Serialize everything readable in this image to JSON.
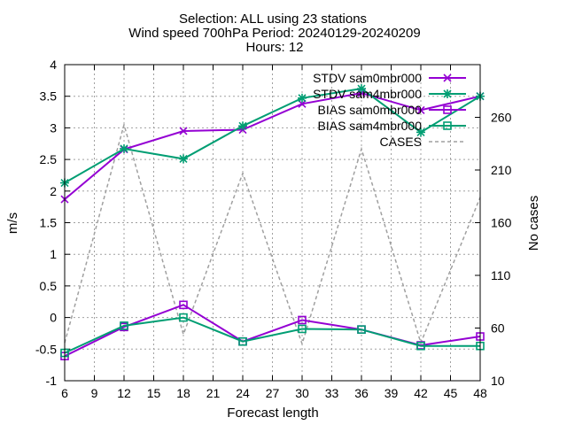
{
  "chart_data": {
    "type": "line",
    "title": [
      "Selection: ALL using    23 stations",
      "Wind speed 700hPa   Period: 20240129-20240209",
      "Hours: 12"
    ],
    "xlabel": "Forecast length",
    "ylabel": "m/s",
    "y2label": "No cases",
    "xlim": [
      6,
      48
    ],
    "ylim": [
      -1,
      4
    ],
    "y2lim": [
      10,
      310
    ],
    "xticks": [
      6,
      9,
      12,
      15,
      18,
      21,
      24,
      27,
      30,
      33,
      36,
      39,
      42,
      45,
      48
    ],
    "yticks": [
      -1,
      -0.5,
      0,
      0.5,
      1,
      1.5,
      2,
      2.5,
      3,
      3.5,
      4
    ],
    "y2ticks": [
      10,
      60,
      110,
      160,
      210,
      260
    ],
    "grid": true,
    "legend_position": "top-right",
    "x": [
      6,
      12,
      18,
      24,
      30,
      36,
      42,
      48
    ],
    "series": [
      {
        "name": "STDV sam0mbr000",
        "axis": "left",
        "color": "#9400d3",
        "marker": "x",
        "dash": false,
        "values": [
          1.87,
          2.66,
          2.95,
          2.97,
          3.38,
          3.55,
          3.28,
          3.5
        ]
      },
      {
        "name": "STDV sam4mbr000",
        "axis": "left",
        "color": "#009e73",
        "marker": "star",
        "dash": false,
        "values": [
          2.13,
          2.67,
          2.51,
          3.03,
          3.47,
          3.62,
          2.93,
          3.5
        ]
      },
      {
        "name": "BIAS sam0mbr000",
        "axis": "left",
        "color": "#9400d3",
        "marker": "square",
        "dash": false,
        "values": [
          -0.61,
          -0.15,
          0.2,
          -0.38,
          -0.04,
          -0.19,
          -0.44,
          -0.3
        ]
      },
      {
        "name": "BIAS sam4mbr000",
        "axis": "left",
        "color": "#009e73",
        "marker": "square",
        "dash": false,
        "values": [
          -0.56,
          -0.13,
          0.0,
          -0.38,
          -0.18,
          -0.19,
          -0.45,
          -0.45
        ]
      },
      {
        "name": "CASES",
        "axis": "right",
        "color": "#a0a0a0",
        "marker": "none",
        "dash": true,
        "values": [
          46,
          253,
          54,
          207,
          45,
          230,
          46,
          184
        ]
      }
    ]
  }
}
